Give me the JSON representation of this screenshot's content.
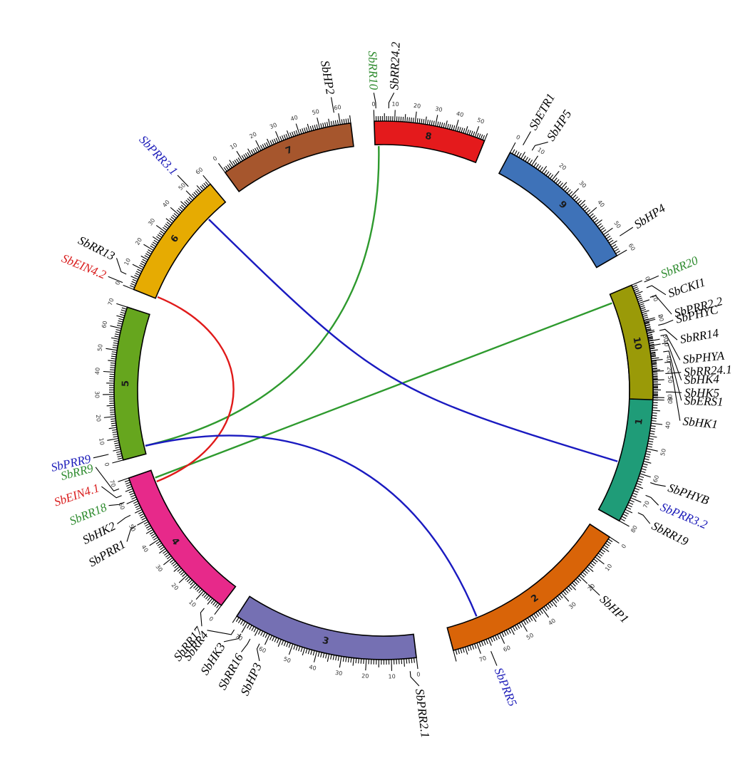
{
  "chart_data": {
    "type": "circos",
    "chromosomes": [
      {
        "id": "1",
        "label": "1",
        "length": 80,
        "color": "#1f9c78",
        "ticks": [
          0,
          10,
          20,
          30,
          40,
          50,
          60,
          70,
          80
        ]
      },
      {
        "id": "2",
        "label": "2",
        "length": 80,
        "color": "#d96408",
        "ticks": [
          0,
          10,
          20,
          30,
          40,
          50,
          60,
          70
        ]
      },
      {
        "id": "3",
        "label": "3",
        "length": 75,
        "color": "#7570b3",
        "ticks": [
          0,
          10,
          20,
          30,
          40,
          50,
          60,
          70
        ]
      },
      {
        "id": "4",
        "label": "4",
        "length": 70,
        "color": "#e7298a",
        "ticks": [
          0,
          10,
          20,
          30,
          40,
          50,
          60,
          70
        ]
      },
      {
        "id": "5",
        "label": "5",
        "length": 70,
        "color": "#66a61e",
        "ticks": [
          0,
          10,
          20,
          30,
          40,
          50,
          60,
          70
        ]
      },
      {
        "id": "6",
        "label": "6",
        "length": 60,
        "color": "#e6ab02",
        "ticks": [
          0,
          10,
          20,
          30,
          40,
          50,
          60
        ]
      },
      {
        "id": "7",
        "label": "7",
        "length": 65,
        "color": "#a6562d",
        "ticks": [
          0,
          10,
          20,
          30,
          40,
          50,
          60
        ]
      },
      {
        "id": "8",
        "label": "8",
        "length": 55,
        "color": "#e41a1c",
        "ticks": [
          0,
          10,
          20,
          30,
          40,
          50
        ]
      },
      {
        "id": "9",
        "label": "9",
        "length": 60,
        "color": "#3e72b8",
        "ticks": [
          0,
          10,
          20,
          30,
          40,
          50,
          60
        ]
      },
      {
        "id": "10",
        "label": "10",
        "length": 60,
        "color": "#9a9a08",
        "ticks": [
          0,
          10,
          20,
          30,
          40,
          50,
          60
        ]
      }
    ],
    "genes": [
      {
        "name": "SbPHYC",
        "chr": "1",
        "pos": 3,
        "color": "#000000"
      },
      {
        "name": "SbRR14",
        "chr": "1",
        "pos": 5,
        "color": "#000000"
      },
      {
        "name": "SbPHYA",
        "chr": "1",
        "pos": 7,
        "color": "#000000"
      },
      {
        "name": "SbHK4",
        "chr": "1",
        "pos": 10,
        "color": "#000000"
      },
      {
        "name": "SbERS1",
        "chr": "1",
        "pos": 13,
        "color": "#000000"
      },
      {
        "name": "SbHK1",
        "chr": "1",
        "pos": 17,
        "color": "#000000"
      },
      {
        "name": "SbPHYB",
        "chr": "1",
        "pos": 62,
        "color": "#000000"
      },
      {
        "name": "SbPRR3.2",
        "chr": "1",
        "pos": 67,
        "color": "#1a1ab8"
      },
      {
        "name": "SbRR19",
        "chr": "1",
        "pos": 74,
        "color": "#000000"
      },
      {
        "name": "SbHP1",
        "chr": "2",
        "pos": 20,
        "color": "#000000"
      },
      {
        "name": "SbPRR5",
        "chr": "2",
        "pos": 66,
        "color": "#1a1ab8"
      },
      {
        "name": "SbPRR2.1",
        "chr": "3",
        "pos": 3,
        "color": "#000000"
      },
      {
        "name": "SbHP3",
        "chr": "3",
        "pos": 62,
        "color": "#000000"
      },
      {
        "name": "SbRR16",
        "chr": "3",
        "pos": 66,
        "color": "#000000"
      },
      {
        "name": "SbHK3",
        "chr": "3",
        "pos": 70,
        "color": "#000000"
      },
      {
        "name": "SbRR4",
        "chr": "3",
        "pos": 73,
        "color": "#000000"
      },
      {
        "name": "SbRR17",
        "chr": "4",
        "pos": 5,
        "color": "#000000"
      },
      {
        "name": "SbPRR1",
        "chr": "4",
        "pos": 50,
        "color": "#000000"
      },
      {
        "name": "SbHK2",
        "chr": "4",
        "pos": 55,
        "color": "#000000"
      },
      {
        "name": "SbRR18",
        "chr": "4",
        "pos": 61,
        "color": "#2e8b2e"
      },
      {
        "name": "SbEIN4.1",
        "chr": "4",
        "pos": 64,
        "color": "#d91b1b"
      },
      {
        "name": "SbRR9",
        "chr": "4",
        "pos": 67,
        "color": "#2e8b2e"
      },
      {
        "name": "SbPRR9",
        "chr": "5",
        "pos": 4,
        "color": "#1a1ab8"
      },
      {
        "name": "SbEIN4.2",
        "chr": "6",
        "pos": 1,
        "color": "#d91b1b"
      },
      {
        "name": "SbRR13",
        "chr": "6",
        "pos": 5,
        "color": "#000000"
      },
      {
        "name": "SbPRR3.1",
        "chr": "6",
        "pos": 52,
        "color": "#1a1ab8"
      },
      {
        "name": "SbHP2",
        "chr": "7",
        "pos": 58,
        "color": "#000000"
      },
      {
        "name": "SbRR10",
        "chr": "8",
        "pos": 1,
        "color": "#2e8b2e"
      },
      {
        "name": "SbRR24.2",
        "chr": "8",
        "pos": 7,
        "color": "#000000"
      },
      {
        "name": "SbETR1",
        "chr": "9",
        "pos": 3,
        "color": "#000000"
      },
      {
        "name": "SbHP5",
        "chr": "9",
        "pos": 7,
        "color": "#000000"
      },
      {
        "name": "SbHP4",
        "chr": "9",
        "pos": 54,
        "color": "#000000"
      },
      {
        "name": "SbRR20",
        "chr": "10",
        "pos": 1,
        "color": "#2e8b2e"
      },
      {
        "name": "SbCKI1",
        "chr": "10",
        "pos": 4,
        "color": "#000000"
      },
      {
        "name": "SbPRR2.2",
        "chr": "10",
        "pos": 9,
        "color": "#000000"
      },
      {
        "name": "SbRR24.1",
        "chr": "10",
        "pos": 47,
        "color": "#000000"
      },
      {
        "name": "SbHK5",
        "chr": "10",
        "pos": 56,
        "color": "#000000"
      }
    ],
    "links": [
      {
        "from": {
          "chr": "8",
          "pos": 2
        },
        "to": {
          "chr": "5",
          "pos": 4
        },
        "color": "#2e9a2e"
      },
      {
        "from": {
          "chr": "10",
          "pos": 5
        },
        "to": {
          "chr": "4",
          "pos": 66
        },
        "color": "#2e9a2e"
      },
      {
        "from": {
          "chr": "6",
          "pos": 48
        },
        "to": {
          "chr": "1",
          "pos": 58
        },
        "color": "#1a1ac0"
      },
      {
        "from": {
          "chr": "6",
          "pos": 1
        },
        "to": {
          "chr": "4",
          "pos": 64
        },
        "color": "#e01a1a"
      },
      {
        "from": {
          "chr": "5",
          "pos": 4
        },
        "to": {
          "chr": "2",
          "pos": 66
        },
        "color": "#1a1ac0"
      }
    ]
  }
}
